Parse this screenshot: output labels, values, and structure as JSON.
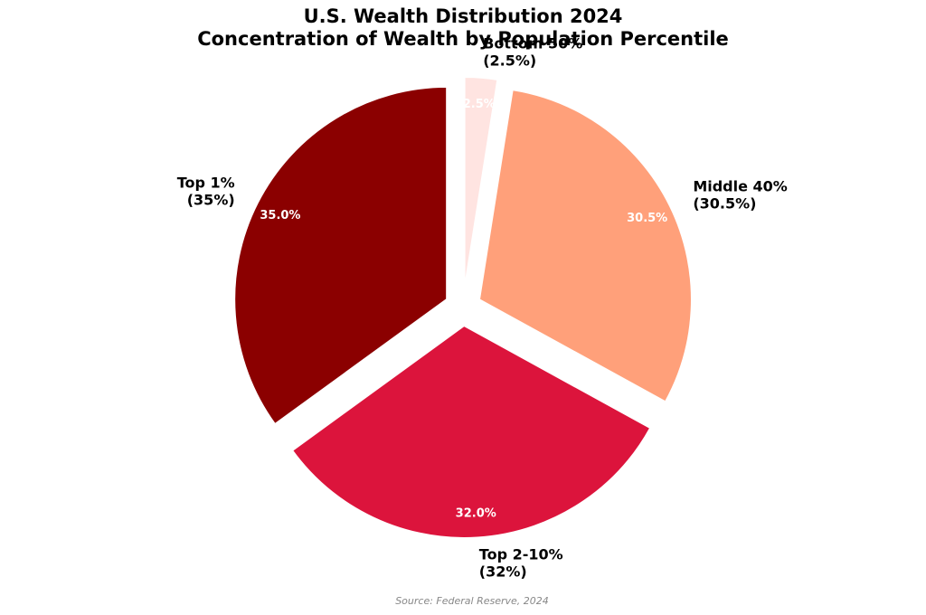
{
  "chart_data": {
    "type": "pie",
    "title": "U.S. Wealth Distribution 2024",
    "subtitle": "Concentration of Wealth by Population Percentile",
    "source": "Source: Federal Reserve, 2024",
    "slices": [
      {
        "label": "Top 1%",
        "label_value": "(35%)",
        "value": 35.0,
        "pct_text": "35.0%",
        "color": "#8b0000"
      },
      {
        "label": "Top 2-10%",
        "label_value": "(32%)",
        "value": 32.0,
        "pct_text": "32.0%",
        "color": "#dc143c"
      },
      {
        "label": "Middle 40%",
        "label_value": "(30.5%)",
        "value": 30.5,
        "pct_text": "30.5%",
        "color": "#ffa07a"
      },
      {
        "label": "Bottom 50%",
        "label_value": "(2.5%)",
        "value": 2.5,
        "pct_text": "2.5%",
        "color": "#ffe4e1"
      }
    ],
    "start_angle_deg": 90,
    "direction": "counterclockwise",
    "exploded": true
  }
}
